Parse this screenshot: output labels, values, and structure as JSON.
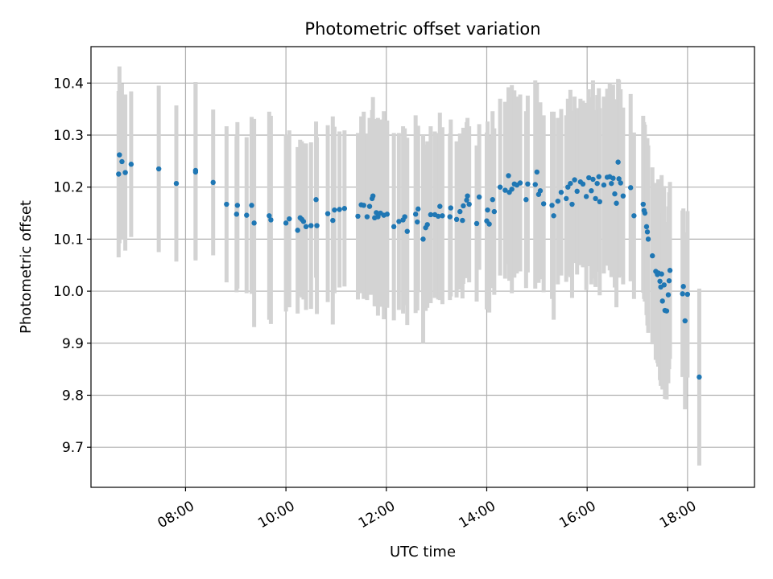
{
  "chart_data": {
    "type": "scatter",
    "title": "Photometric offset variation",
    "xlabel": "UTC time",
    "ylabel": "Photometric offset",
    "x_ticks": [
      "08:00",
      "10:00",
      "12:00",
      "14:00",
      "16:00",
      "18:00"
    ],
    "y_ticks": [
      "9.7",
      "9.8",
      "9.9",
      "10.0",
      "10.1",
      "10.2",
      "10.3",
      "10.4"
    ],
    "xlim": [
      "06:07",
      "19:20"
    ],
    "ylim": [
      9.623,
      10.47
    ],
    "grid": true,
    "marker_color": "#1f77b4",
    "errorbar_color": "#d3d3d3",
    "series": [
      {
        "points": [
          {
            "x": "06:40",
            "y": 10.225,
            "err": 0.16
          },
          {
            "x": "06:41",
            "y": 10.262,
            "err": 0.17
          },
          {
            "x": "06:44",
            "y": 10.249,
            "err": 0.15
          },
          {
            "x": "06:48",
            "y": 10.228,
            "err": 0.15
          },
          {
            "x": "06:55",
            "y": 10.244,
            "err": 0.14
          },
          {
            "x": "07:28",
            "y": 10.235,
            "err": 0.16
          },
          {
            "x": "07:49",
            "y": 10.207,
            "err": 0.15
          },
          {
            "x": "08:12",
            "y": 10.232,
            "err": 0.17
          },
          {
            "x": "08:12",
            "y": 10.229,
            "err": 0.17
          },
          {
            "x": "08:33",
            "y": 10.209,
            "err": 0.14
          },
          {
            "x": "08:49",
            "y": 10.167,
            "err": 0.15
          },
          {
            "x": "09:01",
            "y": 10.148,
            "err": 0.15
          },
          {
            "x": "09:02",
            "y": 10.165,
            "err": 0.16
          },
          {
            "x": "09:13",
            "y": 10.146,
            "err": 0.15
          },
          {
            "x": "09:19",
            "y": 10.165,
            "err": 0.17
          },
          {
            "x": "09:22",
            "y": 10.131,
            "err": 0.2
          },
          {
            "x": "09:40",
            "y": 10.145,
            "err": 0.2
          },
          {
            "x": "09:42",
            "y": 10.137,
            "err": 0.2
          },
          {
            "x": "10:00",
            "y": 10.131,
            "err": 0.17
          },
          {
            "x": "10:04",
            "y": 10.139,
            "err": 0.17
          },
          {
            "x": "10:14",
            "y": 10.117,
            "err": 0.16
          },
          {
            "x": "10:17",
            "y": 10.141,
            "err": 0.15
          },
          {
            "x": "10:19",
            "y": 10.138,
            "err": 0.15
          },
          {
            "x": "10:21",
            "y": 10.134,
            "err": 0.15
          },
          {
            "x": "10:24",
            "y": 10.124,
            "err": 0.16
          },
          {
            "x": "10:30",
            "y": 10.126,
            "err": 0.16
          },
          {
            "x": "10:36",
            "y": 10.176,
            "err": 0.15
          },
          {
            "x": "10:37",
            "y": 10.126,
            "err": 0.17
          },
          {
            "x": "10:50",
            "y": 10.149,
            "err": 0.17
          },
          {
            "x": "10:56",
            "y": 10.136,
            "err": 0.2
          },
          {
            "x": "10:58",
            "y": 10.156,
            "err": 0.16
          },
          {
            "x": "11:04",
            "y": 10.157,
            "err": 0.15
          },
          {
            "x": "11:10",
            "y": 10.159,
            "err": 0.15
          },
          {
            "x": "11:26",
            "y": 10.144,
            "err": 0.16
          },
          {
            "x": "11:30",
            "y": 10.166,
            "err": 0.17
          },
          {
            "x": "11:33",
            "y": 10.165,
            "err": 0.18
          },
          {
            "x": "11:37",
            "y": 10.143,
            "err": 0.16
          },
          {
            "x": "11:40",
            "y": 10.163,
            "err": 0.17
          },
          {
            "x": "11:43",
            "y": 10.178,
            "err": 0.17
          },
          {
            "x": "11:44",
            "y": 10.183,
            "err": 0.19
          },
          {
            "x": "11:46",
            "y": 10.141,
            "err": 0.17
          },
          {
            "x": "11:48",
            "y": 10.151,
            "err": 0.18
          },
          {
            "x": "11:50",
            "y": 10.143,
            "err": 0.19
          },
          {
            "x": "11:53",
            "y": 10.15,
            "err": 0.18
          },
          {
            "x": "11:57",
            "y": 10.146,
            "err": 0.2
          },
          {
            "x": "12:01",
            "y": 10.148,
            "err": 0.18
          },
          {
            "x": "12:09",
            "y": 10.124,
            "err": 0.18
          },
          {
            "x": "12:15",
            "y": 10.134,
            "err": 0.17
          },
          {
            "x": "12:20",
            "y": 10.137,
            "err": 0.18
          },
          {
            "x": "12:22",
            "y": 10.143,
            "err": 0.17
          },
          {
            "x": "12:25",
            "y": 10.115,
            "err": 0.18
          },
          {
            "x": "12:35",
            "y": 10.148,
            "err": 0.19
          },
          {
            "x": "12:37",
            "y": 10.133,
            "err": 0.17
          },
          {
            "x": "12:38",
            "y": 10.158,
            "err": 0.16
          },
          {
            "x": "12:44",
            "y": 10.1,
            "err": 0.2
          },
          {
            "x": "12:47",
            "y": 10.122,
            "err": 0.16
          },
          {
            "x": "12:49",
            "y": 10.128,
            "err": 0.16
          },
          {
            "x": "12:53",
            "y": 10.147,
            "err": 0.17
          },
          {
            "x": "12:58",
            "y": 10.147,
            "err": 0.16
          },
          {
            "x": "13:02",
            "y": 10.144,
            "err": 0.16
          },
          {
            "x": "13:04",
            "y": 10.163,
            "err": 0.18
          },
          {
            "x": "13:07",
            "y": 10.145,
            "err": 0.17
          },
          {
            "x": "13:16",
            "y": 10.143,
            "err": 0.16
          },
          {
            "x": "13:17",
            "y": 10.16,
            "err": 0.17
          },
          {
            "x": "13:24",
            "y": 10.138,
            "err": 0.15
          },
          {
            "x": "13:28",
            "y": 10.153,
            "err": 0.15
          },
          {
            "x": "13:31",
            "y": 10.136,
            "err": 0.15
          },
          {
            "x": "13:32",
            "y": 10.164,
            "err": 0.15
          },
          {
            "x": "13:36",
            "y": 10.175,
            "err": 0.15
          },
          {
            "x": "13:37",
            "y": 10.183,
            "err": 0.15
          },
          {
            "x": "13:39",
            "y": 10.167,
            "err": 0.15
          },
          {
            "x": "13:48",
            "y": 10.13,
            "err": 0.15
          },
          {
            "x": "13:51",
            "y": 10.181,
            "err": 0.14
          },
          {
            "x": "14:00",
            "y": 10.135,
            "err": 0.17
          },
          {
            "x": "14:01",
            "y": 10.156,
            "err": 0.17
          },
          {
            "x": "14:03",
            "y": 10.129,
            "err": 0.17
          },
          {
            "x": "14:07",
            "y": 10.176,
            "err": 0.17
          },
          {
            "x": "14:09",
            "y": 10.153,
            "err": 0.16
          },
          {
            "x": "14:16",
            "y": 10.2,
            "err": 0.17
          },
          {
            "x": "14:22",
            "y": 10.194,
            "err": 0.17
          },
          {
            "x": "14:26",
            "y": 10.222,
            "err": 0.17
          },
          {
            "x": "14:27",
            "y": 10.19,
            "err": 0.17
          },
          {
            "x": "14:30",
            "y": 10.196,
            "err": 0.2
          },
          {
            "x": "14:33",
            "y": 10.206,
            "err": 0.18
          },
          {
            "x": "14:36",
            "y": 10.204,
            "err": 0.17
          },
          {
            "x": "14:40",
            "y": 10.208,
            "err": 0.17
          },
          {
            "x": "14:47",
            "y": 10.176,
            "err": 0.17
          },
          {
            "x": "14:49",
            "y": 10.206,
            "err": 0.17
          },
          {
            "x": "14:58",
            "y": 10.205,
            "err": 0.2
          },
          {
            "x": "15:00",
            "y": 10.229,
            "err": 0.17
          },
          {
            "x": "15:02",
            "y": 10.186,
            "err": 0.17
          },
          {
            "x": "15:04",
            "y": 10.193,
            "err": 0.17
          },
          {
            "x": "15:08",
            "y": 10.168,
            "err": 0.17
          },
          {
            "x": "15:18",
            "y": 10.165,
            "err": 0.18
          },
          {
            "x": "15:20",
            "y": 10.145,
            "err": 0.2
          },
          {
            "x": "15:25",
            "y": 10.173,
            "err": 0.16
          },
          {
            "x": "15:29",
            "y": 10.19,
            "err": 0.16
          },
          {
            "x": "15:35",
            "y": 10.178,
            "err": 0.16
          },
          {
            "x": "15:37",
            "y": 10.2,
            "err": 0.17
          },
          {
            "x": "15:40",
            "y": 10.207,
            "err": 0.18
          },
          {
            "x": "15:42",
            "y": 10.167,
            "err": 0.18
          },
          {
            "x": "15:45",
            "y": 10.214,
            "err": 0.16
          },
          {
            "x": "15:48",
            "y": 10.192,
            "err": 0.16
          },
          {
            "x": "15:52",
            "y": 10.21,
            "err": 0.16
          },
          {
            "x": "15:55",
            "y": 10.206,
            "err": 0.16
          },
          {
            "x": "15:59",
            "y": 10.182,
            "err": 0.18
          },
          {
            "x": "16:02",
            "y": 10.218,
            "err": 0.17
          },
          {
            "x": "16:05",
            "y": 10.193,
            "err": 0.18
          },
          {
            "x": "16:07",
            "y": 10.215,
            "err": 0.19
          },
          {
            "x": "16:10",
            "y": 10.178,
            "err": 0.17
          },
          {
            "x": "16:12",
            "y": 10.207,
            "err": 0.17
          },
          {
            "x": "16:14",
            "y": 10.22,
            "err": 0.17
          },
          {
            "x": "16:15",
            "y": 10.172,
            "err": 0.18
          },
          {
            "x": "16:20",
            "y": 10.204,
            "err": 0.17
          },
          {
            "x": "16:24",
            "y": 10.219,
            "err": 0.17
          },
          {
            "x": "16:27",
            "y": 10.22,
            "err": 0.18
          },
          {
            "x": "16:29",
            "y": 10.207,
            "err": 0.18
          },
          {
            "x": "16:31",
            "y": 10.217,
            "err": 0.18
          },
          {
            "x": "16:33",
            "y": 10.187,
            "err": 0.18
          },
          {
            "x": "16:35",
            "y": 10.169,
            "err": 0.2
          },
          {
            "x": "16:37",
            "y": 10.248,
            "err": 0.16
          },
          {
            "x": "16:38",
            "y": 10.216,
            "err": 0.19
          },
          {
            "x": "16:40",
            "y": 10.208,
            "err": 0.18
          },
          {
            "x": "16:43",
            "y": 10.183,
            "err": 0.17
          },
          {
            "x": "16:52",
            "y": 10.199,
            "err": 0.18
          },
          {
            "x": "16:56",
            "y": 10.145,
            "err": 0.16
          },
          {
            "x": "17:07",
            "y": 10.167,
            "err": 0.17
          },
          {
            "x": "17:08",
            "y": 10.155,
            "err": 0.17
          },
          {
            "x": "17:09",
            "y": 10.15,
            "err": 0.17
          },
          {
            "x": "17:11",
            "y": 10.124,
            "err": 0.17
          },
          {
            "x": "17:12",
            "y": 10.114,
            "err": 0.18
          },
          {
            "x": "17:13",
            "y": 10.1,
            "err": 0.18
          },
          {
            "x": "17:18",
            "y": 10.068,
            "err": 0.17
          },
          {
            "x": "17:22",
            "y": 10.038,
            "err": 0.17
          },
          {
            "x": "17:24",
            "y": 10.032,
            "err": 0.17
          },
          {
            "x": "17:25",
            "y": 10.035,
            "err": 0.18
          },
          {
            "x": "17:27",
            "y": 10.019,
            "err": 0.19
          },
          {
            "x": "17:28",
            "y": 10.008,
            "err": 0.19
          },
          {
            "x": "17:29",
            "y": 10.033,
            "err": 0.19
          },
          {
            "x": "17:30",
            "y": 9.981,
            "err": 0.17
          },
          {
            "x": "17:32",
            "y": 10.012,
            "err": 0.19
          },
          {
            "x": "17:33",
            "y": 9.963,
            "err": 0.17
          },
          {
            "x": "17:35",
            "y": 9.962,
            "err": 0.17
          },
          {
            "x": "17:37",
            "y": 9.993,
            "err": 0.17
          },
          {
            "x": "17:38",
            "y": 10.02,
            "err": 0.17
          },
          {
            "x": "17:39",
            "y": 10.04,
            "err": 0.17
          },
          {
            "x": "17:54",
            "y": 9.995,
            "err": 0.16
          },
          {
            "x": "17:55",
            "y": 10.009,
            "err": 0.15
          },
          {
            "x": "17:57",
            "y": 9.943,
            "err": 0.17
          },
          {
            "x": "18:00",
            "y": 9.994,
            "err": 0.16
          },
          {
            "x": "18:14",
            "y": 9.835,
            "err": 0.17
          }
        ]
      }
    ]
  }
}
